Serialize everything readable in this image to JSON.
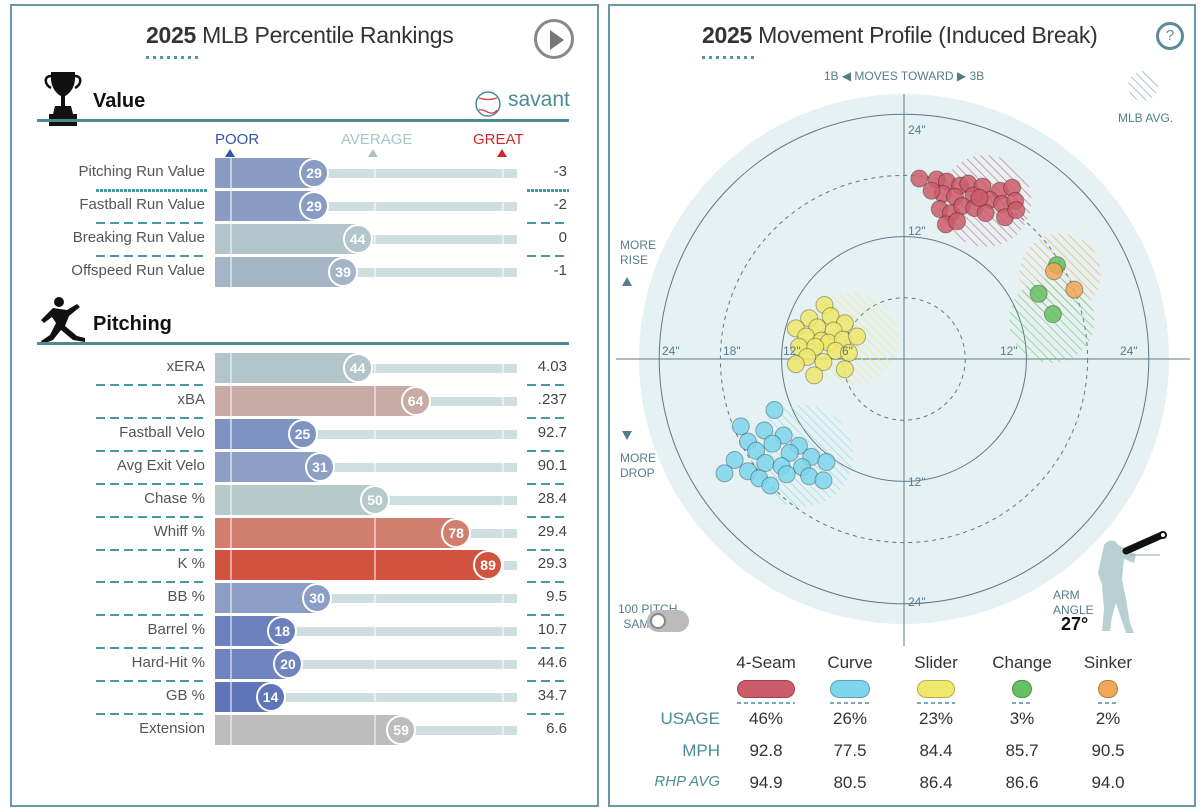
{
  "left": {
    "title_year": "2025",
    "title_rest": "MLB Percentile Rankings",
    "play_icon": "play-circle-icon",
    "value_section": {
      "title": "Value",
      "icon": "trophy-icon",
      "brand": "savant",
      "brand_icon": "baseball-icon"
    },
    "scale": {
      "poor": "POOR",
      "average": "AVERAGE",
      "great": "GREAT",
      "poor_color": "#3556a6",
      "average_color": "#a8c4c8",
      "great_color": "#cc2a2a"
    },
    "value_rows": [
      {
        "label": "Pitching Run Value",
        "percentile": 29,
        "value": "-3",
        "color": "#8a9cc4"
      },
      {
        "label": "Fastball Run Value",
        "percentile": 29,
        "value": "-2",
        "color": "#8a9cc4"
      },
      {
        "label": "Breaking Run Value",
        "percentile": 44,
        "value": "0",
        "color": "#b1c5ca"
      },
      {
        "label": "Offspeed Run Value",
        "percentile": 39,
        "value": "-1",
        "color": "#a3b5c7"
      }
    ],
    "pitching_section": {
      "title": "Pitching",
      "icon": "pitcher-icon"
    },
    "pitching_rows": [
      {
        "label": "xERA",
        "percentile": 44,
        "value": "4.03",
        "color": "#b1c5ca"
      },
      {
        "label": "xBA",
        "percentile": 64,
        "value": ".237",
        "color": "#c8aba5"
      },
      {
        "label": "Fastball Velo",
        "percentile": 25,
        "value": "92.7",
        "color": "#7f93c3"
      },
      {
        "label": "Avg Exit Velo",
        "percentile": 31,
        "value": "90.1",
        "color": "#8d9fc6"
      },
      {
        "label": "Chase %",
        "percentile": 50,
        "value": "28.4",
        "color": "#b7cacb"
      },
      {
        "label": "Whiff %",
        "percentile": 78,
        "value": "29.4",
        "color": "#d27e6e"
      },
      {
        "label": "K %",
        "percentile": 89,
        "value": "29.3",
        "color": "#d1533f"
      },
      {
        "label": "BB %",
        "percentile": 30,
        "value": "9.5",
        "color": "#8c9ec5"
      },
      {
        "label": "Barrel %",
        "percentile": 18,
        "value": "10.7",
        "color": "#6b80bd"
      },
      {
        "label": "Hard-Hit %",
        "percentile": 20,
        "value": "44.6",
        "color": "#7084bf"
      },
      {
        "label": "GB %",
        "percentile": 14,
        "value": "34.7",
        "color": "#5f75ba"
      },
      {
        "label": "Extension",
        "percentile": 59,
        "value": "6.6",
        "color": "#bdbdbd"
      }
    ]
  },
  "right": {
    "title_year": "2025",
    "title_rest": "Movement Profile (Induced Break)",
    "help_icon": "help-circle-icon",
    "direction": {
      "left": "1B",
      "middle": "MOVES TOWARD",
      "right": "3B"
    },
    "mlb_avg_label": "MLB AVG.",
    "more_rise": "MORE RISE",
    "more_drop": "MORE DROP",
    "ring_labels": {
      "top24": "24\"",
      "top12": "12\"",
      "bottom12": "12\"",
      "bottom24": "24\"",
      "left24": "24\"",
      "left18": "18\"",
      "left12": "12\"",
      "left6": "6\"",
      "right12": "12\"",
      "right24": "24\""
    },
    "sample_toggle": {
      "label_1": "100 PITCH",
      "label_2": "SAMPLE",
      "on": false
    },
    "arm_angle": {
      "label_1": "ARM",
      "label_2": "ANGLE",
      "value": "27°"
    },
    "row_labels": {
      "usage": "USAGE",
      "mph": "MPH",
      "rhp_avg": "RHP AVG"
    },
    "pitches": [
      {
        "name": "4-Seam",
        "color": "#cd5c6a",
        "usage": "46%",
        "mph": "92.8",
        "rhp_avg": "94.9"
      },
      {
        "name": "Curve",
        "color": "#7dd6ec",
        "usage": "26%",
        "mph": "77.5",
        "rhp_avg": "80.5"
      },
      {
        "name": "Slider",
        "color": "#efe86a",
        "usage": "23%",
        "mph": "84.4",
        "rhp_avg": "86.4"
      },
      {
        "name": "Change",
        "color": "#66c160",
        "usage": "3%",
        "mph": "85.7",
        "rhp_avg": "86.6"
      },
      {
        "name": "Sinker",
        "color": "#f1a755",
        "usage": "2%",
        "mph": "90.5",
        "rhp_avg": "94.0"
      }
    ]
  },
  "chart_data": {
    "type": "scatter",
    "title": "2025 Movement Profile (Induced Break)",
    "xlabel": "1B ◀ MOVES TOWARD ▶ 3B",
    "ylabel": "MORE RISE / MORE DROP",
    "units": "inches",
    "rings": [
      6,
      12,
      18,
      24
    ],
    "xlim": [
      -26,
      26
    ],
    "ylim": [
      -26,
      26
    ],
    "mlb_avg": [
      {
        "pitch": "4-Seam",
        "hb": 8,
        "ivb": 15.5,
        "r": 4.5
      },
      {
        "pitch": "Slider",
        "hb": -5,
        "ivb": 2,
        "r": 4.5
      },
      {
        "pitch": "Curve",
        "hb": -10,
        "ivb": -9.5,
        "r": 5
      },
      {
        "pitch": "Sinker",
        "hb": 15.3,
        "ivb": 8.3,
        "r": 4
      },
      {
        "pitch": "Change",
        "hb": 14.5,
        "ivb": 3.8,
        "r": 4.2
      }
    ],
    "series": [
      {
        "name": "4-Seam",
        "points": [
          [
            1.5,
            17.7
          ],
          [
            3.2,
            17.6
          ],
          [
            4.2,
            17.4
          ],
          [
            5.5,
            17
          ],
          [
            6.3,
            17.2
          ],
          [
            7.7,
            16.9
          ],
          [
            9.4,
            16.5
          ],
          [
            10.6,
            16.8
          ],
          [
            3.8,
            16.2
          ],
          [
            5,
            15.9
          ],
          [
            6.8,
            16
          ],
          [
            8.4,
            15.6
          ],
          [
            9.6,
            15.2
          ],
          [
            10.9,
            15.5
          ],
          [
            3.5,
            14.7
          ],
          [
            4.6,
            14.3
          ],
          [
            5.7,
            15
          ],
          [
            6.9,
            14.8
          ],
          [
            8,
            14.3
          ],
          [
            4.1,
            13.2
          ],
          [
            5.2,
            13.5
          ],
          [
            9.9,
            13.9
          ],
          [
            11,
            14.6
          ],
          [
            7.4,
            15.8
          ],
          [
            2.7,
            16.5
          ]
        ]
      },
      {
        "name": "Curve",
        "points": [
          [
            -12.7,
            -5
          ],
          [
            -16,
            -6.6
          ],
          [
            -13.7,
            -7
          ],
          [
            -11.8,
            -7.5
          ],
          [
            -15.3,
            -8.1
          ],
          [
            -12.9,
            -8.3
          ],
          [
            -10.3,
            -8.5
          ],
          [
            -14.5,
            -9
          ],
          [
            -11.2,
            -9.2
          ],
          [
            -9.1,
            -9.6
          ],
          [
            -16.6,
            -9.9
          ],
          [
            -13.6,
            -10.2
          ],
          [
            -12,
            -10.5
          ],
          [
            -10,
            -10.6
          ],
          [
            -7.6,
            -10.1
          ],
          [
            -15.3,
            -11
          ],
          [
            -11.5,
            -11.3
          ],
          [
            -14.2,
            -11.7
          ],
          [
            -9.3,
            -11.5
          ],
          [
            -17.6,
            -11.2
          ],
          [
            -13.1,
            -12.4
          ],
          [
            -7.9,
            -11.9
          ]
        ]
      },
      {
        "name": "Slider",
        "points": [
          [
            -7.8,
            5.3
          ],
          [
            -9.3,
            4
          ],
          [
            -7.2,
            4.2
          ],
          [
            -5.8,
            3.5
          ],
          [
            -10.6,
            3
          ],
          [
            -8.5,
            3.1
          ],
          [
            -6.9,
            2.8
          ],
          [
            -9.6,
            2.2
          ],
          [
            -8.1,
            1.8
          ],
          [
            -7.4,
            1.6
          ],
          [
            -6,
            1.9
          ],
          [
            -10.3,
            1.2
          ],
          [
            -8.7,
            1.2
          ],
          [
            -6.7,
            0.8
          ],
          [
            -5.4,
            0.6
          ],
          [
            -9.5,
            0.2
          ],
          [
            -7.9,
            -0.3
          ],
          [
            -10.6,
            -0.5
          ],
          [
            -5.8,
            -1
          ],
          [
            -8.8,
            -1.6
          ],
          [
            -4.6,
            2.2
          ]
        ]
      },
      {
        "name": "Change",
        "points": [
          [
            15,
            9.2
          ],
          [
            13.2,
            6.4
          ],
          [
            14.6,
            4.4
          ]
        ]
      },
      {
        "name": "Sinker",
        "points": [
          [
            14.7,
            8.6
          ],
          [
            16.7,
            6.8
          ]
        ]
      }
    ]
  }
}
